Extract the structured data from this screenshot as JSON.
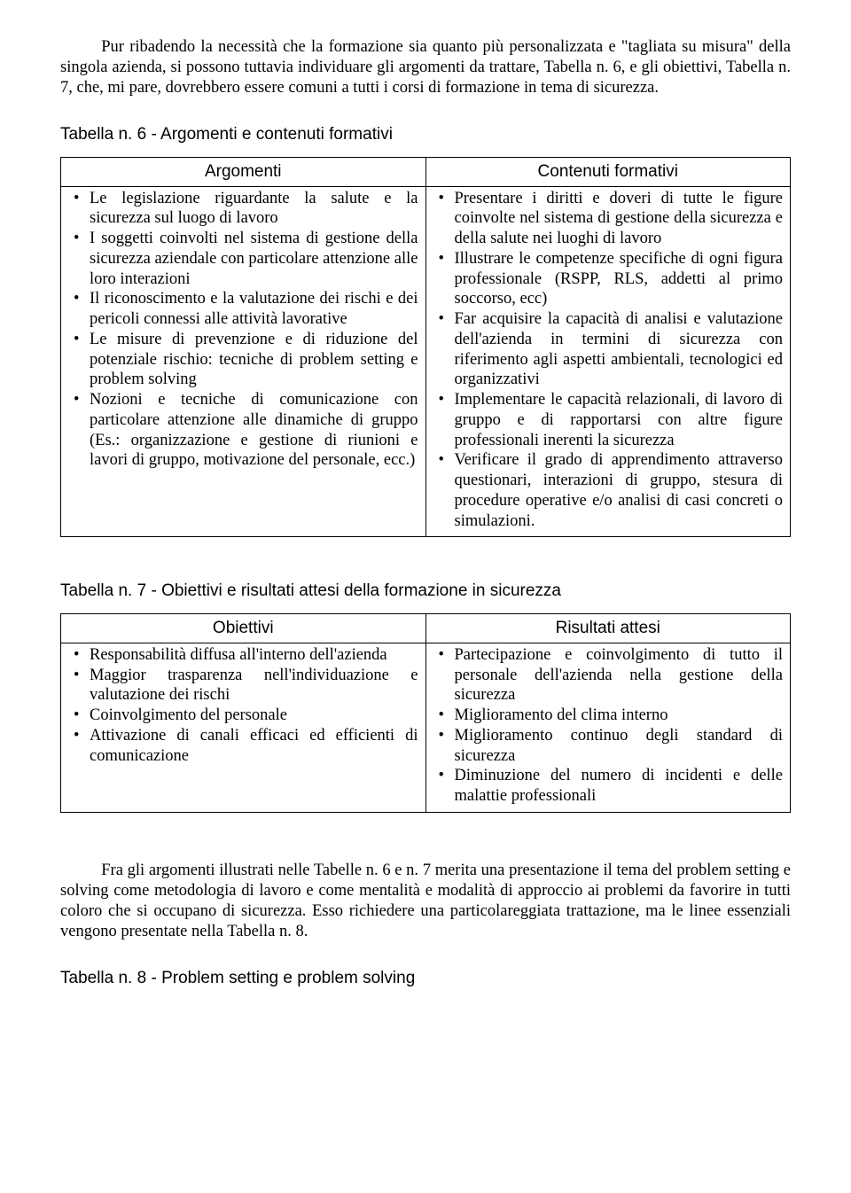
{
  "intro1": "Pur ribadendo la necessità che la formazione sia quanto più personalizzata e \"tagliata su misura\" della singola azienda, si possono tuttavia individuare gli argomenti da trattare, Tabella n. 6, e gli obiettivi, Tabella n. 7, che, mi pare, dovrebbero essere comuni a tutti i corsi di formazione in tema di sicurezza.",
  "table6": {
    "caption": "Tabella n. 6 - Argomenti e contenuti formativi",
    "header_left": "Argomenti",
    "header_right": "Contenuti formativi",
    "left": [
      "Le legislazione riguardante la salute e la sicurezza sul luogo di lavoro",
      "I soggetti coinvolti nel sistema di gestione della sicurezza aziendale con particolare attenzione alle loro interazioni",
      "Il riconoscimento e la valutazione dei rischi e dei pericoli connessi alle attività lavorative",
      "Le misure di prevenzione e di riduzione del potenziale rischio: tecniche di problem setting e problem solving",
      "Nozioni e tecniche di comunicazione con particolare attenzione alle dinamiche di gruppo (Es.: organizzazione e gestione di riunioni e lavori di gruppo, motivazione del personale, ecc.)"
    ],
    "right": [
      "Presentare i diritti e doveri di tutte le figure coinvolte nel sistema di gestione della sicurezza e della salute nei luoghi di lavoro",
      "Illustrare le competenze specifiche di ogni figura professionale (RSPP, RLS, addetti al primo soccorso, ecc)",
      "Far acquisire la capacità di analisi e valutazione dell'azienda in termini di sicurezza con riferimento agli aspetti ambientali, tecnologici ed organizzativi",
      "Implementare le capacità relazionali, di lavoro di gruppo e di rapportarsi con altre figure professionali inerenti la sicurezza",
      "Verificare il grado di apprendimento attraverso questionari, interazioni di gruppo, stesura di procedure operative e/o analisi di casi concreti o simulazioni."
    ]
  },
  "table7": {
    "caption": "Tabella n. 7 - Obiettivi e risultati attesi della formazione in sicurezza",
    "header_left": "Obiettivi",
    "header_right": "Risultati attesi",
    "left": [
      "Responsabilità diffusa all'interno dell'azienda",
      "Maggior trasparenza nell'individuazione e valutazione dei rischi",
      "Coinvolgimento del personale",
      "Attivazione di canali efficaci ed efficienti di comunicazione"
    ],
    "right": [
      "Partecipazione e coinvolgimento di tutto il personale dell'azienda nella gestione della sicurezza",
      "Miglioramento del clima interno",
      "Miglioramento continuo degli standard di sicurezza",
      "Diminuzione del numero di incidenti e delle malattie professionali"
    ]
  },
  "intro2": "Fra gli argomenti illustrati nelle Tabelle n. 6 e n. 7 merita una presentazione il tema del problem setting e solving come metodologia di lavoro e come mentalità e modalità di approccio ai problemi da favorire in tutti coloro che si occupano di sicurezza. Esso richiedere una particolareggiata trattazione, ma le linee essenziali vengono presentate nella Tabella n. 8.",
  "caption8": "Tabella n. 8 - Problem setting e problem solving"
}
